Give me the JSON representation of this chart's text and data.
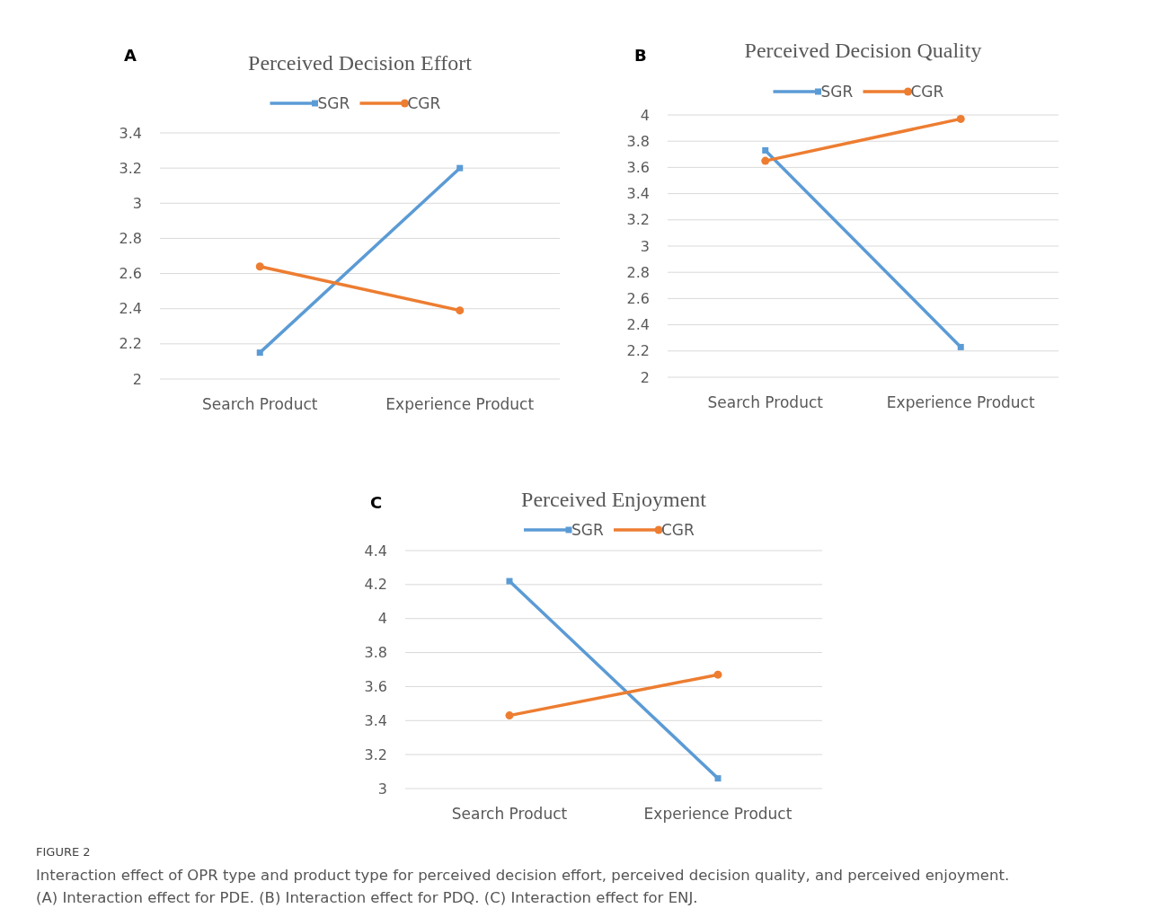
{
  "chart_data": [
    {
      "type": "line",
      "title": "Perceived Decision Effort",
      "annotations": [
        "A"
      ],
      "categories": [
        "Search Product",
        "Experience Product"
      ],
      "ylim": [
        2,
        3.4
      ],
      "yticks": [
        2,
        2.2,
        2.4,
        2.6,
        2.8,
        3,
        3.2,
        3.4
      ],
      "grid": "y",
      "legend": "top",
      "series": [
        {
          "name": "SGR",
          "color": "#5b9bd5",
          "marker": "square",
          "values": [
            2.15,
            3.2
          ]
        },
        {
          "name": "CGR",
          "color": "#ed7d31",
          "marker": "circle",
          "values": [
            2.64,
            2.39
          ]
        }
      ]
    },
    {
      "type": "line",
      "title": "Perceived Decision Quality",
      "annotations": [
        "B"
      ],
      "categories": [
        "Search Product",
        "Experience Product"
      ],
      "ylim": [
        2,
        4
      ],
      "yticks": [
        2,
        2.2,
        2.4,
        2.6,
        2.8,
        3,
        3.2,
        3.4,
        3.6,
        3.8,
        4
      ],
      "grid": "y",
      "legend": "top",
      "series": [
        {
          "name": "SGR",
          "color": "#5b9bd5",
          "marker": "square",
          "values": [
            3.73,
            2.23
          ]
        },
        {
          "name": "CGR",
          "color": "#ed7d31",
          "marker": "circle",
          "values": [
            3.65,
            3.97
          ]
        }
      ]
    },
    {
      "type": "line",
      "title": "Perceived Enjoyment",
      "annotations": [
        "C",
        "FIGURE 2",
        "Interaction effect of OPR type and product type for perceived decision effort, perceived decision quality, and perceived enjoyment.",
        "(A) Interaction effect for PDE. (B) Interaction effect for PDQ. (C) Interaction effect for ENJ."
      ],
      "categories": [
        "Search Product",
        "Experience Product"
      ],
      "ylim": [
        3,
        4.4
      ],
      "yticks": [
        3,
        3.2,
        3.4,
        3.6,
        3.8,
        4,
        4.2,
        4.4
      ],
      "grid": "y",
      "legend": "top",
      "series": [
        {
          "name": "SGR",
          "color": "#5b9bd5",
          "marker": "square",
          "values": [
            4.22,
            3.06
          ]
        },
        {
          "name": "CGR",
          "color": "#ed7d31",
          "marker": "circle",
          "values": [
            3.43,
            3.67
          ]
        }
      ]
    }
  ]
}
